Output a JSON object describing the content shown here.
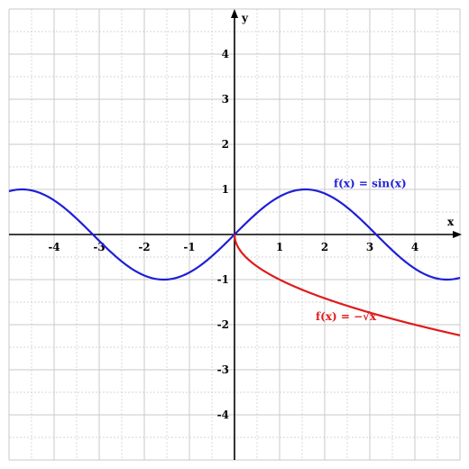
{
  "chart_data": {
    "type": "line",
    "title": "",
    "xlabel": "x",
    "ylabel": "y",
    "xlim": [
      -5,
      5
    ],
    "ylim": [
      -5,
      5
    ],
    "grid": true,
    "minor_step": 0.5,
    "x_ticks": [
      -4,
      -3,
      -2,
      -1,
      1,
      2,
      3,
      4
    ],
    "x_tick_labels": [
      "-4",
      "-3",
      "-2",
      "-1",
      "1",
      "2",
      "3",
      "4"
    ],
    "y_ticks": [
      4,
      3,
      2,
      1,
      -1,
      -2,
      -3,
      -4
    ],
    "y_tick_labels": [
      "4",
      "3",
      "2",
      "1",
      "-1",
      "-2",
      "-3",
      "-4"
    ],
    "series": [
      {
        "name": "f(x) = sin(x)",
        "function": "sin",
        "color": "#1f1fd6",
        "domain": [
          -5,
          5
        ],
        "label_at": [
          2.2,
          1.05
        ],
        "points": [
          [
            -5,
            0.959
          ],
          [
            -4.712,
            1.0
          ],
          [
            -4,
            0.757
          ],
          [
            -3.142,
            0.0
          ],
          [
            -3,
            -0.141
          ],
          [
            -2,
            -0.909
          ],
          [
            -1.571,
            -1.0
          ],
          [
            -1,
            -0.841
          ],
          [
            0,
            0.0
          ],
          [
            1,
            0.841
          ],
          [
            1.571,
            1.0
          ],
          [
            2,
            0.909
          ],
          [
            3,
            0.141
          ],
          [
            3.142,
            0.0
          ],
          [
            4,
            -0.757
          ],
          [
            4.712,
            -1.0
          ],
          [
            5,
            -0.959
          ]
        ]
      },
      {
        "name": "f(x) = −√x",
        "function": "neg_sqrt",
        "color": "#e01b1b",
        "domain": [
          0,
          5
        ],
        "label_at": [
          1.8,
          -1.9
        ],
        "points": [
          [
            0,
            0.0
          ],
          [
            0.25,
            -0.5
          ],
          [
            1,
            -1.0
          ],
          [
            2,
            -1.414
          ],
          [
            3,
            -1.732
          ],
          [
            4,
            -2.0
          ],
          [
            5,
            -2.236
          ]
        ]
      }
    ]
  }
}
